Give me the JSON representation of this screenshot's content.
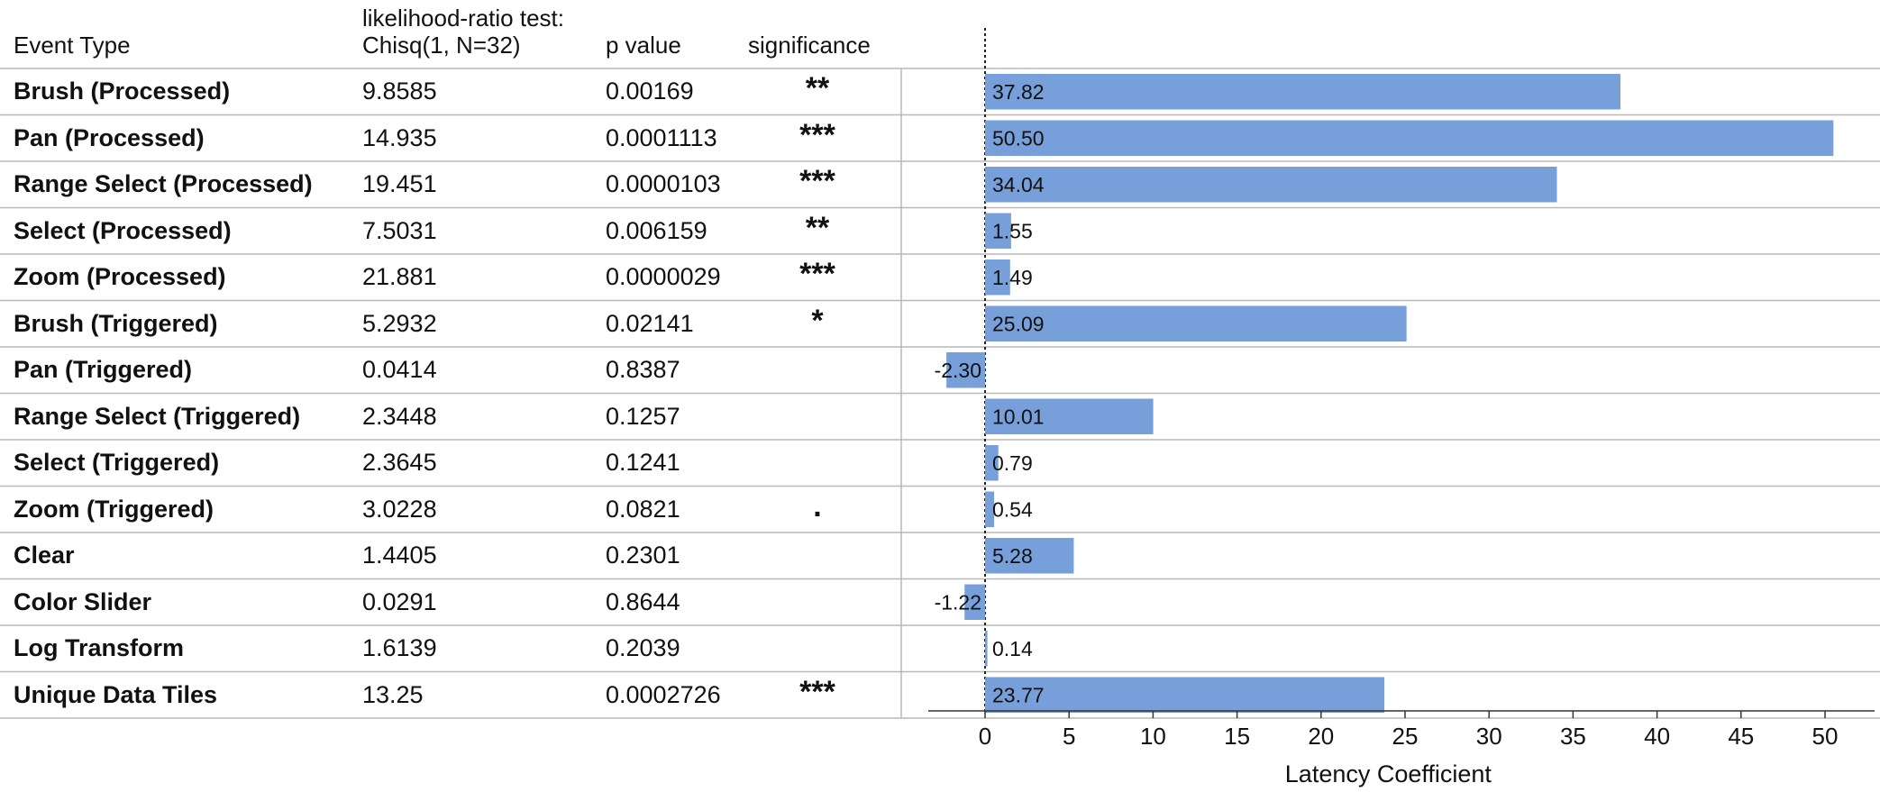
{
  "headers": {
    "event_type": "Event Type",
    "test_line1": "likelihood-ratio test:",
    "test_line2": "Chisq(1, N=32)",
    "p_value": "p value",
    "significance": "significance"
  },
  "colors": {
    "bar": "#779fd9",
    "grid": "#b8b8b8",
    "zero_line": "#222222"
  },
  "chart_data": {
    "type": "bar",
    "orientation": "horizontal",
    "xlabel": "Latency Coefficient",
    "xlim": [
      -5,
      53
    ],
    "xticks": [
      0,
      5,
      10,
      15,
      20,
      25,
      30,
      35,
      40,
      45,
      50
    ],
    "categories": [
      "Brush (Processed)",
      "Pan (Processed)",
      "Range Select (Processed)",
      "Select (Processed)",
      "Zoom (Processed)",
      "Brush (Triggered)",
      "Pan (Triggered)",
      "Range Select (Triggered)",
      "Select (Triggered)",
      "Zoom (Triggered)",
      "Clear",
      "Color Slider",
      "Log Transform",
      "Unique Data Tiles"
    ],
    "values": [
      37.82,
      50.5,
      34.04,
      1.55,
      1.49,
      25.09,
      -2.3,
      10.01,
      0.79,
      0.54,
      5.28,
      -1.22,
      0.14,
      23.77
    ],
    "value_labels": [
      "37.82",
      "50.50",
      "34.04",
      "1.55",
      "1.49",
      "25.09",
      "-2.30",
      "10.01",
      "0.79",
      "0.54",
      "5.28",
      "-1.22",
      "0.14",
      "23.77"
    ],
    "chisq": [
      "9.8585",
      "14.935",
      "19.451",
      "7.5031",
      "21.881",
      "5.2932",
      "0.0414",
      "2.3448",
      "2.3645",
      "3.0228",
      "1.4405",
      "0.0291",
      "1.6139",
      "13.25"
    ],
    "p_values": [
      "0.00169",
      "0.0001113",
      "0.0000103",
      "0.006159",
      "0.0000029",
      "0.02141",
      "0.8387",
      "0.1257",
      "0.1241",
      "0.0821",
      "0.2301",
      "0.8644",
      "0.2039",
      "0.0002726"
    ],
    "significance": [
      "**",
      "***",
      "***",
      "**",
      "***",
      "*",
      "",
      "",
      "",
      ".",
      "",
      "",
      "",
      "***"
    ]
  }
}
